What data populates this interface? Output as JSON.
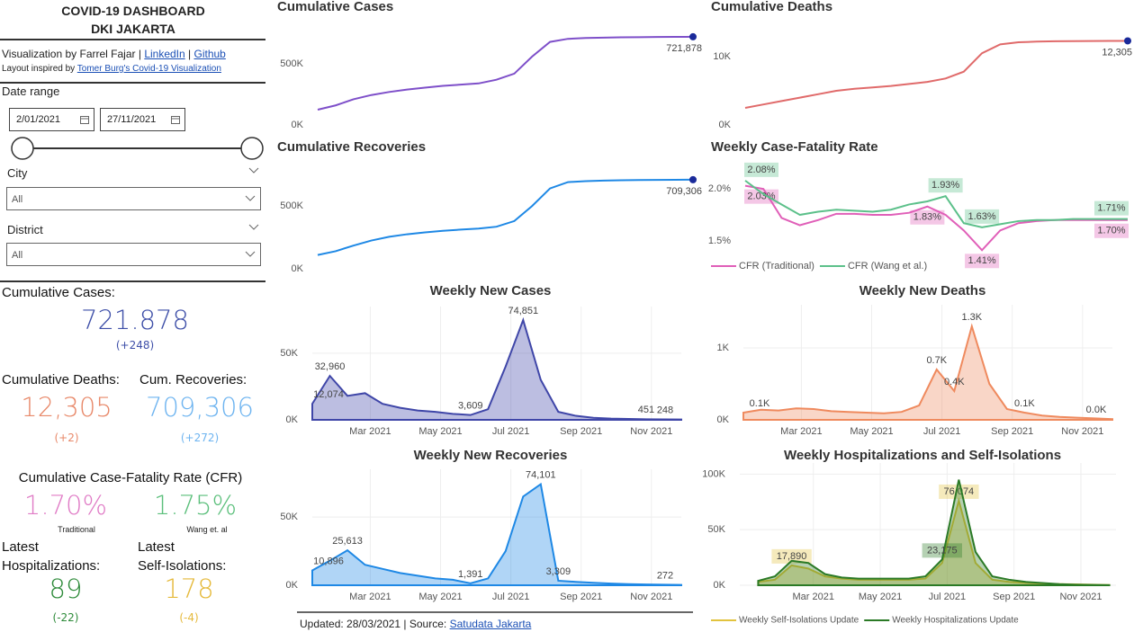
{
  "sidebar": {
    "title": "COVID-19 DASHBOARD",
    "subtitle": "DKI JAKARTA",
    "credit": {
      "text": "Visualization by Farrel Fajar |",
      "linkedin": "LinkedIn",
      "sep": "|",
      "github": "Github"
    },
    "layout_note": {
      "text": "Layout inspired by",
      "link": "Tomer Burg's Covid-19 Visualization"
    },
    "date_range": {
      "label": "Date range",
      "start": "2/01/2021",
      "end": "27/11/2021"
    },
    "city": {
      "label": "City",
      "value": "All"
    },
    "district": {
      "label": "District",
      "value": "All"
    },
    "cases": {
      "label": "Cumulative Cases:",
      "value": "721.878",
      "change": "(+248)"
    },
    "deaths": {
      "label": "Cumulative Deaths:",
      "value": "12,305",
      "change": "(+2)"
    },
    "recoveries": {
      "label": "Cum. Recoveries:",
      "value": "709,306",
      "change": "(+272)"
    },
    "cfr": {
      "label": "Cumulative Case-Fatality Rate (CFR)",
      "traditional": "1.70%",
      "traditional_label": "Traditional",
      "wang": "1.75%",
      "wang_label": "Wang et. al"
    },
    "hospitalizations": {
      "label1": "Latest",
      "label2": "Hospitalizations:",
      "value": "89",
      "change": "(-22)"
    },
    "isolations": {
      "label1": "Latest",
      "label2": "Self-Isolations:",
      "value": "178",
      "change": "(-4)"
    }
  },
  "footer": {
    "text": "Updated: 28/03/2021 | Source:",
    "link": "Satudata Jakarta"
  },
  "chart_data": [
    {
      "type": "line",
      "title": "Cumulative Cases",
      "grid": false,
      "end_marker": true,
      "x": [
        1.35,
        1.85,
        2.35,
        2.85,
        3.35,
        3.85,
        4.35,
        4.85,
        5.35,
        5.85,
        6.35,
        6.85,
        7.35,
        7.85,
        8.35,
        8.85,
        9.35,
        9.85,
        10.35,
        10.85,
        11.35,
        11.85
      ],
      "xlim": [
        1.35,
        11.85
      ],
      "ylim": [
        0,
        780000
      ],
      "yticks": [
        {
          "value": 0,
          "label": "0K"
        },
        {
          "value": 500000,
          "label": "500K"
        }
      ],
      "series": [
        {
          "name": "Cumulative Cases",
          "color": "#7e4fc9",
          "values": [
            125000,
            160000,
            210000,
            245000,
            270000,
            290000,
            305000,
            320000,
            330000,
            340000,
            370000,
            420000,
            560000,
            680000,
            705000,
            712000,
            715000,
            717000,
            718500,
            719800,
            720900,
            721878
          ],
          "value_labels": [
            null,
            null,
            null,
            null,
            null,
            null,
            null,
            null,
            null,
            null,
            null,
            null,
            null,
            null,
            null,
            null,
            null,
            null,
            null,
            null,
            null,
            "721,878"
          ]
        }
      ]
    },
    {
      "type": "line",
      "title": "Cumulative Deaths",
      "grid": false,
      "end_marker": true,
      "x": [
        1.35,
        1.85,
        2.35,
        2.85,
        3.35,
        3.85,
        4.35,
        4.85,
        5.35,
        5.85,
        6.35,
        6.85,
        7.35,
        7.85,
        8.35,
        8.85,
        9.35,
        9.85,
        10.35,
        10.85,
        11.35,
        11.85
      ],
      "xlim": [
        1.35,
        11.85
      ],
      "ylim": [
        0,
        15000
      ],
      "yticks": [
        {
          "value": 0,
          "label": "0K"
        },
        {
          "value": 10000,
          "label": "10K"
        }
      ],
      "series": [
        {
          "name": "Cumulative Deaths",
          "color": "#e06a6a",
          "values": [
            2500,
            3000,
            3500,
            4000,
            4500,
            5000,
            5300,
            5500,
            5700,
            6000,
            6300,
            6800,
            7800,
            10500,
            11800,
            12100,
            12200,
            12250,
            12270,
            12285,
            12300,
            12305
          ],
          "value_labels": [
            null,
            null,
            null,
            null,
            null,
            null,
            null,
            null,
            null,
            null,
            null,
            null,
            null,
            null,
            null,
            null,
            null,
            null,
            null,
            null,
            null,
            "12,305"
          ]
        }
      ]
    },
    {
      "type": "line",
      "title": "Cumulative Recoveries",
      "grid": false,
      "end_marker": true,
      "x": [
        1.35,
        1.85,
        2.35,
        2.85,
        3.35,
        3.85,
        4.35,
        4.85,
        5.35,
        5.85,
        6.35,
        6.85,
        7.35,
        7.85,
        8.35,
        8.85,
        9.35,
        9.85,
        10.35,
        10.85,
        11.35,
        11.85
      ],
      "xlim": [
        1.35,
        11.85
      ],
      "ylim": [
        0,
        780000
      ],
      "yticks": [
        {
          "value": 0,
          "label": "0K"
        },
        {
          "value": 500000,
          "label": "500K"
        }
      ],
      "series": [
        {
          "name": "Cumulative Recoveries",
          "color": "#1e88e5",
          "values": [
            110000,
            140000,
            185000,
            225000,
            255000,
            275000,
            290000,
            302000,
            312000,
            320000,
            335000,
            380000,
            500000,
            640000,
            690000,
            698000,
            702000,
            704500,
            706500,
            707800,
            708700,
            709306
          ],
          "value_labels": [
            null,
            null,
            null,
            null,
            null,
            null,
            null,
            null,
            null,
            null,
            null,
            null,
            null,
            null,
            null,
            null,
            null,
            null,
            null,
            null,
            null,
            "709,306"
          ]
        }
      ]
    },
    {
      "type": "line",
      "title": "Weekly Case-Fatality Rate",
      "grid": false,
      "x": [
        1.35,
        1.85,
        2.35,
        2.85,
        3.35,
        3.85,
        4.35,
        4.85,
        5.35,
        5.85,
        6.35,
        6.85,
        7.35,
        7.85,
        8.35,
        8.85,
        9.35,
        9.85,
        10.35,
        10.85,
        11.35,
        11.85
      ],
      "xlim": [
        1.35,
        11.85
      ],
      "ylim": [
        1.3,
        2.2
      ],
      "yticks": [
        {
          "value": 1.5,
          "label": "1.5%"
        },
        {
          "value": 2,
          "label": "2.0%"
        }
      ],
      "series": [
        {
          "name": "CFR (Traditional)",
          "color": "#e05fb8",
          "values": [
            2.03,
            2.0,
            1.72,
            1.65,
            1.7,
            1.76,
            1.76,
            1.75,
            1.75,
            1.77,
            1.83,
            1.75,
            1.6,
            1.41,
            1.6,
            1.67,
            1.69,
            1.7,
            1.7,
            1.7,
            1.7,
            1.7
          ],
          "value_labels": [
            "2.03%",
            null,
            null,
            null,
            null,
            null,
            null,
            null,
            null,
            null,
            "1.83%",
            null,
            null,
            "1.41%",
            null,
            null,
            null,
            null,
            null,
            null,
            null,
            "1.70%"
          ]
        },
        {
          "name": "CFR (Wang et al.)",
          "color": "#5cc08a",
          "values": [
            2.08,
            1.95,
            1.85,
            1.75,
            1.78,
            1.8,
            1.79,
            1.78,
            1.8,
            1.85,
            1.88,
            1.93,
            1.67,
            1.63,
            1.66,
            1.69,
            1.7,
            1.7,
            1.71,
            1.71,
            1.71,
            1.71
          ],
          "value_labels": [
            "2.08%",
            null,
            null,
            null,
            null,
            null,
            null,
            null,
            null,
            null,
            null,
            "1.93%",
            null,
            "1.63%",
            null,
            null,
            null,
            null,
            null,
            null,
            null,
            "1.71%"
          ]
        }
      ]
    },
    {
      "type": "area",
      "title": "Weekly New Cases",
      "grid": true,
      "x": [
        1.35,
        1.85,
        2.35,
        2.85,
        3.35,
        3.85,
        4.35,
        4.85,
        5.35,
        5.85,
        6.35,
        6.85,
        7.35,
        7.85,
        8.35,
        8.85,
        9.35,
        9.85,
        10.35,
        10.85,
        11.35,
        11.85
      ],
      "xlim": [
        1.35,
        11.85
      ],
      "xticks": [
        {
          "value": 3,
          "label": "Mar 2021"
        },
        {
          "value": 5,
          "label": "May 2021"
        },
        {
          "value": 7,
          "label": "Jul 2021"
        },
        {
          "value": 9,
          "label": "Sep 2021"
        },
        {
          "value": 11,
          "label": "Nov 2021"
        }
      ],
      "ylim": [
        0,
        85000
      ],
      "yticks": [
        {
          "value": 0,
          "label": "0K"
        },
        {
          "value": 50000,
          "label": "50K"
        }
      ],
      "series": [
        {
          "name": "Weekly New Cases",
          "color": "#3f46a8",
          "values": [
            12074,
            32960,
            18000,
            20000,
            12000,
            9000,
            7000,
            6000,
            4500,
            3609,
            8000,
            40000,
            74851,
            30000,
            6000,
            3000,
            1500,
            900,
            700,
            451,
            350,
            248
          ],
          "value_labels": [
            "12,074",
            "32,960",
            null,
            null,
            null,
            null,
            null,
            null,
            null,
            "3,609",
            null,
            null,
            "74,851",
            null,
            null,
            null,
            null,
            null,
            null,
            "451",
            null,
            "248"
          ]
        }
      ]
    },
    {
      "type": "area",
      "title": "Weekly New Deaths",
      "grid": true,
      "x": [
        1.35,
        1.85,
        2.35,
        2.85,
        3.35,
        3.85,
        4.35,
        4.85,
        5.35,
        5.85,
        6.35,
        6.85,
        7.35,
        7.85,
        8.35,
        8.85,
        9.35,
        9.85,
        10.35,
        10.85,
        11.35,
        11.85
      ],
      "xlim": [
        1.35,
        11.85
      ],
      "xticks": [
        {
          "value": 3,
          "label": "Mar 2021"
        },
        {
          "value": 5,
          "label": "May 2021"
        },
        {
          "value": 7,
          "label": "Jul 2021"
        },
        {
          "value": 9,
          "label": "Sep 2021"
        },
        {
          "value": 11,
          "label": "Nov 2021"
        }
      ],
      "ylim": [
        0,
        1600
      ],
      "yticks": [
        {
          "value": 0,
          "label": "0K"
        },
        {
          "value": 1000,
          "label": "1K"
        }
      ],
      "series": [
        {
          "name": "Weekly New Deaths",
          "color": "#ef8a5e",
          "values": [
            100,
            140,
            130,
            160,
            150,
            120,
            110,
            100,
            90,
            110,
            200,
            700,
            400,
            1300,
            500,
            150,
            100,
            60,
            40,
            30,
            20,
            10
          ],
          "value_labels": [
            "0.1K",
            null,
            null,
            null,
            null,
            null,
            null,
            null,
            null,
            null,
            null,
            "0.7K",
            "0.4K",
            "1.3K",
            null,
            null,
            "0.1K",
            null,
            null,
            null,
            null,
            "0.0K"
          ]
        }
      ]
    },
    {
      "type": "area",
      "title": "Weekly New Recoveries",
      "grid": true,
      "x": [
        1.35,
        1.85,
        2.35,
        2.85,
        3.35,
        3.85,
        4.35,
        4.85,
        5.35,
        5.85,
        6.35,
        6.85,
        7.35,
        7.85,
        8.35,
        8.85,
        9.35,
        9.85,
        10.35,
        10.85,
        11.35,
        11.85
      ],
      "xlim": [
        1.35,
        11.85
      ],
      "xticks": [
        {
          "value": 3,
          "label": "Mar 2021"
        },
        {
          "value": 5,
          "label": "May 2021"
        },
        {
          "value": 7,
          "label": "Jul 2021"
        },
        {
          "value": 9,
          "label": "Sep 2021"
        },
        {
          "value": 11,
          "label": "Nov 2021"
        }
      ],
      "ylim": [
        0,
        85000
      ],
      "yticks": [
        {
          "value": 0,
          "label": "0K"
        },
        {
          "value": 50000,
          "label": "50K"
        }
      ],
      "series": [
        {
          "name": "Weekly New Recoveries",
          "color": "#1e88e5",
          "values": [
            10896,
            18000,
            25613,
            15000,
            12000,
            9000,
            7000,
            5000,
            4000,
            1391,
            5000,
            25000,
            65000,
            74101,
            3309,
            2500,
            1800,
            1200,
            800,
            600,
            400,
            272
          ],
          "value_labels": [
            "10,896",
            null,
            "25,613",
            null,
            null,
            null,
            null,
            null,
            null,
            "1,391",
            null,
            null,
            null,
            "74,101",
            "3,309",
            null,
            null,
            null,
            null,
            null,
            null,
            "272"
          ]
        }
      ]
    },
    {
      "type": "area",
      "title": "Weekly Hospitalizations and Self-Isolations",
      "grid": true,
      "x": [
        1.35,
        1.85,
        2.35,
        2.85,
        3.35,
        3.85,
        4.35,
        4.85,
        5.35,
        5.85,
        6.35,
        6.85,
        7.35,
        7.85,
        8.35,
        8.85,
        9.35,
        9.85,
        10.35,
        10.85,
        11.35,
        11.85
      ],
      "xlim": [
        0.8,
        12.05
      ],
      "xticks": [
        {
          "value": 3,
          "label": "Mar 2021"
        },
        {
          "value": 5,
          "label": "May 2021"
        },
        {
          "value": 7,
          "label": "Jul 2021"
        },
        {
          "value": 9,
          "label": "Sep 2021"
        },
        {
          "value": 11,
          "label": "Nov 2021"
        }
      ],
      "ylim": [
        0,
        110000
      ],
      "yticks": [
        {
          "value": 0,
          "label": "0K"
        },
        {
          "value": 50000,
          "label": "50K"
        },
        {
          "value": 100000,
          "label": "100K"
        }
      ],
      "series": [
        {
          "name": "Weekly Self-Isolations Update",
          "color": "#e2c33e",
          "values": [
            3000,
            5000,
            17890,
            15000,
            8000,
            6000,
            5000,
            5000,
            5000,
            5000,
            6000,
            20000,
            76074,
            20000,
            5000,
            3000,
            2000,
            1500,
            1000,
            800,
            500,
            178
          ],
          "value_labels": [
            null,
            null,
            "17,890",
            null,
            null,
            null,
            null,
            null,
            null,
            null,
            null,
            null,
            "76,074",
            null,
            null,
            null,
            null,
            null,
            null,
            null,
            null,
            null
          ]
        },
        {
          "name": "Weekly Hospitalizations Update",
          "color": "#2b7a26",
          "values": [
            4000,
            8000,
            22000,
            20000,
            10000,
            7000,
            6000,
            6000,
            6000,
            6000,
            8000,
            23175,
            95000,
            30000,
            8000,
            5000,
            3000,
            2000,
            1000,
            500,
            300,
            89
          ],
          "value_labels": [
            null,
            null,
            null,
            null,
            null,
            null,
            null,
            null,
            null,
            null,
            null,
            "23,175",
            null,
            null,
            null,
            null,
            null,
            null,
            null,
            null,
            null,
            null
          ]
        }
      ]
    }
  ]
}
